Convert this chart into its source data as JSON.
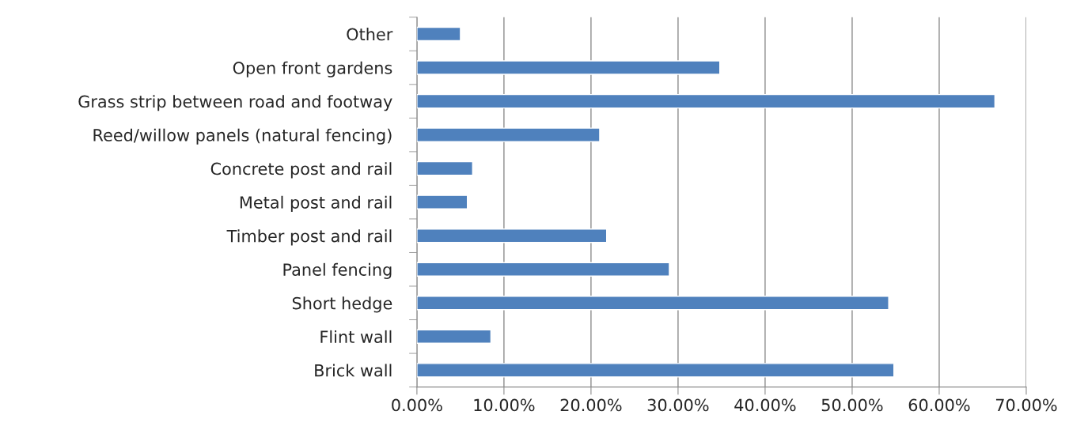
{
  "chart_data": {
    "type": "bar",
    "orientation": "horizontal",
    "categories": [
      "Other",
      "Open front gardens",
      "Grass strip between road and footway",
      "Reed/willow panels (natural fencing)",
      "Concrete post and rail",
      "Metal post and rail",
      "Timber post and rail",
      "Panel fencing",
      "Short hedge",
      "Flint wall",
      "Brick wall"
    ],
    "values": [
      5.0,
      34.8,
      66.4,
      21.0,
      6.4,
      5.8,
      21.8,
      29.0,
      54.2,
      8.5,
      54.8
    ],
    "color": "#4f81bd",
    "xlim": [
      0,
      70
    ],
    "xticks": [
      {
        "value": 0,
        "label": "0.00%"
      },
      {
        "value": 10,
        "label": "10.00%"
      },
      {
        "value": 20,
        "label": "20.00%"
      },
      {
        "value": 30,
        "label": "30.00%"
      },
      {
        "value": 40,
        "label": "40.00%"
      },
      {
        "value": 50,
        "label": "50.00%"
      },
      {
        "value": 60,
        "label": "60.00%"
      },
      {
        "value": 70,
        "label": "70.00%"
      }
    ],
    "grid": "x"
  }
}
